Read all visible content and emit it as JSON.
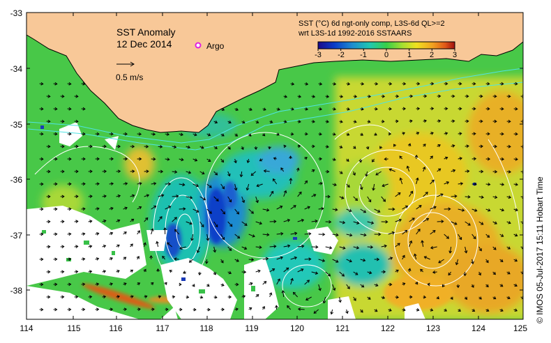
{
  "map": {
    "title": "SST Anomaly",
    "date": "12 Dec 2014",
    "argo_label": "Argo",
    "velocity_scale_label": "0.5 m/s",
    "credit": "© IMOS 05-Jul-2017 15:11 Hobart Time",
    "land_color": "#f8c898",
    "coast_color": "#000000",
    "contour_color": "#ffffff",
    "altimetry_contour_color": "#4fe3e3"
  },
  "axes": {
    "x_ticks": [
      "114",
      "115",
      "116",
      "117",
      "118",
      "119",
      "120",
      "121",
      "122",
      "123",
      "124",
      "125"
    ],
    "y_ticks": [
      "-33",
      "-34",
      "-35",
      "-36",
      "-37",
      "-38"
    ]
  },
  "colorbar": {
    "line1": "SST (°C) 6d ngt-only comp, L3S-6d QL>=2",
    "line2": "wrt L3S-1d 1992-2016 SSTAARS",
    "ticks": [
      "-3",
      "-2",
      "-1",
      "0",
      "1",
      "2",
      "3"
    ],
    "colors": [
      "#1a0a8a",
      "#0a3cc8",
      "#1e8cd0",
      "#20c8b0",
      "#38d048",
      "#a8e030",
      "#f0e020",
      "#f0a020",
      "#e05818",
      "#a01010"
    ]
  }
}
